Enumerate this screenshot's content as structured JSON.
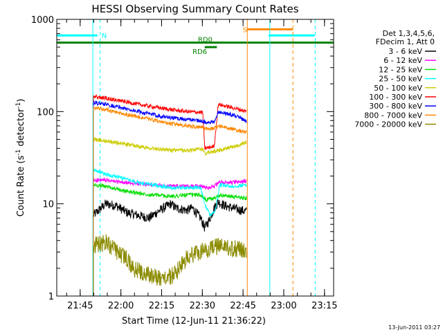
{
  "chart_data": {
    "type": "line",
    "title": "HESSI Observing Summary Count Rates",
    "xlabel": "Start Time (12-Jun-11 21:36:22)",
    "ylabel_parts": [
      "Count Rate (s",
      "-1",
      " detector",
      "-1",
      ")"
    ],
    "y_scale": "log",
    "ylim": [
      1,
      1000
    ],
    "y_ticks": [
      {
        "value": 1,
        "label": "1"
      },
      {
        "value": 10,
        "label": "10"
      },
      {
        "value": 100,
        "label": "100"
      },
      {
        "value": 1000,
        "label": "1000"
      }
    ],
    "x_ticks": [
      {
        "minutes": 8.63,
        "label": "21:45"
      },
      {
        "minutes": 23.63,
        "label": "22:00"
      },
      {
        "minutes": 38.63,
        "label": "22:15"
      },
      {
        "minutes": 53.63,
        "label": "22:30"
      },
      {
        "minutes": 68.63,
        "label": "22:45"
      },
      {
        "minutes": 83.63,
        "label": "23:00"
      },
      {
        "minutes": 98.63,
        "label": "23:15"
      }
    ],
    "xlim_minutes": [
      0,
      102
    ],
    "legend_header": [
      "Det 1,3,4,5,6,",
      "FDecim 1, Att 0"
    ],
    "series": [
      {
        "name": "3 - 6 keV",
        "color": "#000000",
        "points": [
          [
            13.5,
            7.5
          ],
          [
            18,
            10
          ],
          [
            22,
            9.5
          ],
          [
            26,
            8
          ],
          [
            30,
            7.5
          ],
          [
            34,
            7
          ],
          [
            38,
            8.5
          ],
          [
            42,
            10
          ],
          [
            44,
            9
          ],
          [
            48,
            8.5
          ],
          [
            50,
            9
          ],
          [
            53,
            7
          ],
          [
            54.5,
            5.5
          ],
          [
            56,
            6.5
          ],
          [
            58,
            9
          ],
          [
            59.5,
            10.5
          ],
          [
            62,
            9.5
          ],
          [
            66,
            8.8
          ],
          [
            70,
            8.2
          ]
        ]
      },
      {
        "name": "6 - 12 keV",
        "color": "#ff00ff",
        "points": [
          [
            13.5,
            18
          ],
          [
            18,
            18
          ],
          [
            24,
            17
          ],
          [
            30,
            16.5
          ],
          [
            36,
            16
          ],
          [
            42,
            15.5
          ],
          [
            48,
            15.5
          ],
          [
            53,
            15.5
          ],
          [
            55,
            15
          ],
          [
            58,
            15.5
          ],
          [
            60,
            17
          ],
          [
            64,
            17
          ],
          [
            70,
            17.5
          ]
        ]
      },
      {
        "name": "12 - 25 keV",
        "color": "#00dd00",
        "points": [
          [
            13.5,
            16
          ],
          [
            18,
            15.5
          ],
          [
            24,
            14
          ],
          [
            30,
            13
          ],
          [
            36,
            12.5
          ],
          [
            42,
            12
          ],
          [
            48,
            12.5
          ],
          [
            53,
            12.5
          ],
          [
            55,
            11
          ],
          [
            58,
            11.5
          ],
          [
            60,
            12.5
          ],
          [
            64,
            12
          ],
          [
            70,
            11.5
          ]
        ]
      },
      {
        "name": "25 - 50 keV",
        "color": "#00ffff",
        "points": [
          [
            13.5,
            23
          ],
          [
            18,
            21
          ],
          [
            24,
            19
          ],
          [
            30,
            17
          ],
          [
            36,
            16
          ],
          [
            42,
            15
          ],
          [
            48,
            15
          ],
          [
            53,
            15
          ],
          [
            54.5,
            10
          ],
          [
            56.5,
            7.5
          ],
          [
            58.5,
            8.5
          ],
          [
            60,
            16
          ],
          [
            64,
            15.5
          ],
          [
            70,
            16
          ]
        ]
      },
      {
        "name": "50 - 100 keV",
        "color": "#cccc00",
        "points": [
          [
            13.5,
            50
          ],
          [
            18,
            48
          ],
          [
            24,
            45
          ],
          [
            30,
            42
          ],
          [
            36,
            40
          ],
          [
            42,
            38
          ],
          [
            48,
            38
          ],
          [
            53,
            39
          ],
          [
            53.8,
            39
          ],
          [
            54.5,
            35
          ],
          [
            58,
            37
          ],
          [
            59.5,
            38
          ],
          [
            62,
            40
          ],
          [
            66,
            42
          ],
          [
            70,
            47
          ]
        ]
      },
      {
        "name": "100 - 300 keV",
        "color": "#ff0000",
        "points": [
          [
            13.5,
            145
          ],
          [
            18,
            140
          ],
          [
            24,
            130
          ],
          [
            30,
            120
          ],
          [
            36,
            112
          ],
          [
            42,
            105
          ],
          [
            48,
            100
          ],
          [
            53,
            98
          ],
          [
            53.8,
            97
          ],
          [
            54.5,
            40
          ],
          [
            58,
            42
          ],
          [
            59.5,
            120
          ],
          [
            62,
            115
          ],
          [
            66,
            108
          ],
          [
            70,
            100
          ]
        ]
      },
      {
        "name": "300 - 800 keV",
        "color": "#0000ff",
        "points": [
          [
            13.5,
            125
          ],
          [
            18,
            120
          ],
          [
            24,
            110
          ],
          [
            30,
            100
          ],
          [
            36,
            92
          ],
          [
            42,
            86
          ],
          [
            48,
            82
          ],
          [
            53,
            80
          ],
          [
            54,
            78
          ],
          [
            55,
            75
          ],
          [
            58,
            77
          ],
          [
            59.5,
            100
          ],
          [
            62,
            96
          ],
          [
            66,
            90
          ],
          [
            70,
            78
          ]
        ]
      },
      {
        "name": "800 - 7000 keV",
        "color": "#ff8800",
        "points": [
          [
            13.5,
            110
          ],
          [
            18,
            105
          ],
          [
            24,
            95
          ],
          [
            30,
            88
          ],
          [
            36,
            80
          ],
          [
            42,
            74
          ],
          [
            48,
            70
          ],
          [
            53,
            68
          ],
          [
            54,
            67
          ],
          [
            55,
            65
          ],
          [
            58,
            66
          ],
          [
            59.5,
            70
          ],
          [
            62,
            68
          ],
          [
            66,
            63
          ],
          [
            70,
            60
          ]
        ]
      },
      {
        "name": "7000 - 20000 keV",
        "color": "#8b8b00",
        "points": [
          [
            13.5,
            3.5
          ],
          [
            18,
            3.8
          ],
          [
            22,
            3.0
          ],
          [
            26,
            2.5
          ],
          [
            28,
            2.0
          ],
          [
            34,
            1.7
          ],
          [
            40,
            1.5
          ],
          [
            44,
            1.8
          ],
          [
            46,
            2.2
          ],
          [
            48,
            2.6
          ],
          [
            52,
            3.0
          ],
          [
            56,
            3.2
          ],
          [
            60,
            3.5
          ],
          [
            64,
            3.3
          ],
          [
            70,
            3.1
          ]
        ]
      }
    ],
    "flags": [
      {
        "label": "N",
        "color": "#00ffff",
        "segments": [
          [
            0,
            15
          ],
          [
            78,
            95
          ]
        ],
        "level": 670
      },
      {
        "label": "S",
        "color": "#ff8800",
        "segments": [
          [
            70,
            87
          ]
        ],
        "level": 780
      },
      {
        "label": "RD0",
        "color": "#008000",
        "segments": [
          [
            0,
            102
          ]
        ],
        "level": 560
      },
      {
        "label": "RD6",
        "color": "#008000",
        "segments": [
          [
            54.5,
            59
          ]
        ],
        "level": 500
      }
    ],
    "markers": [
      {
        "minutes": 13.3,
        "color": "#00ffff",
        "style": "solid"
      },
      {
        "minutes": 16.0,
        "color": "#00ffff",
        "style": "dashed"
      },
      {
        "minutes": 70.2,
        "color": "#ff8800",
        "style": "solid"
      },
      {
        "minutes": 78.5,
        "color": "#00ffff",
        "style": "solid"
      },
      {
        "minutes": 87.0,
        "color": "#ff8800",
        "style": "dashed"
      },
      {
        "minutes": 95.2,
        "color": "#00ffff",
        "style": "dashed"
      }
    ]
  },
  "footer": {
    "date": "13-Jun-2011 03:27"
  }
}
